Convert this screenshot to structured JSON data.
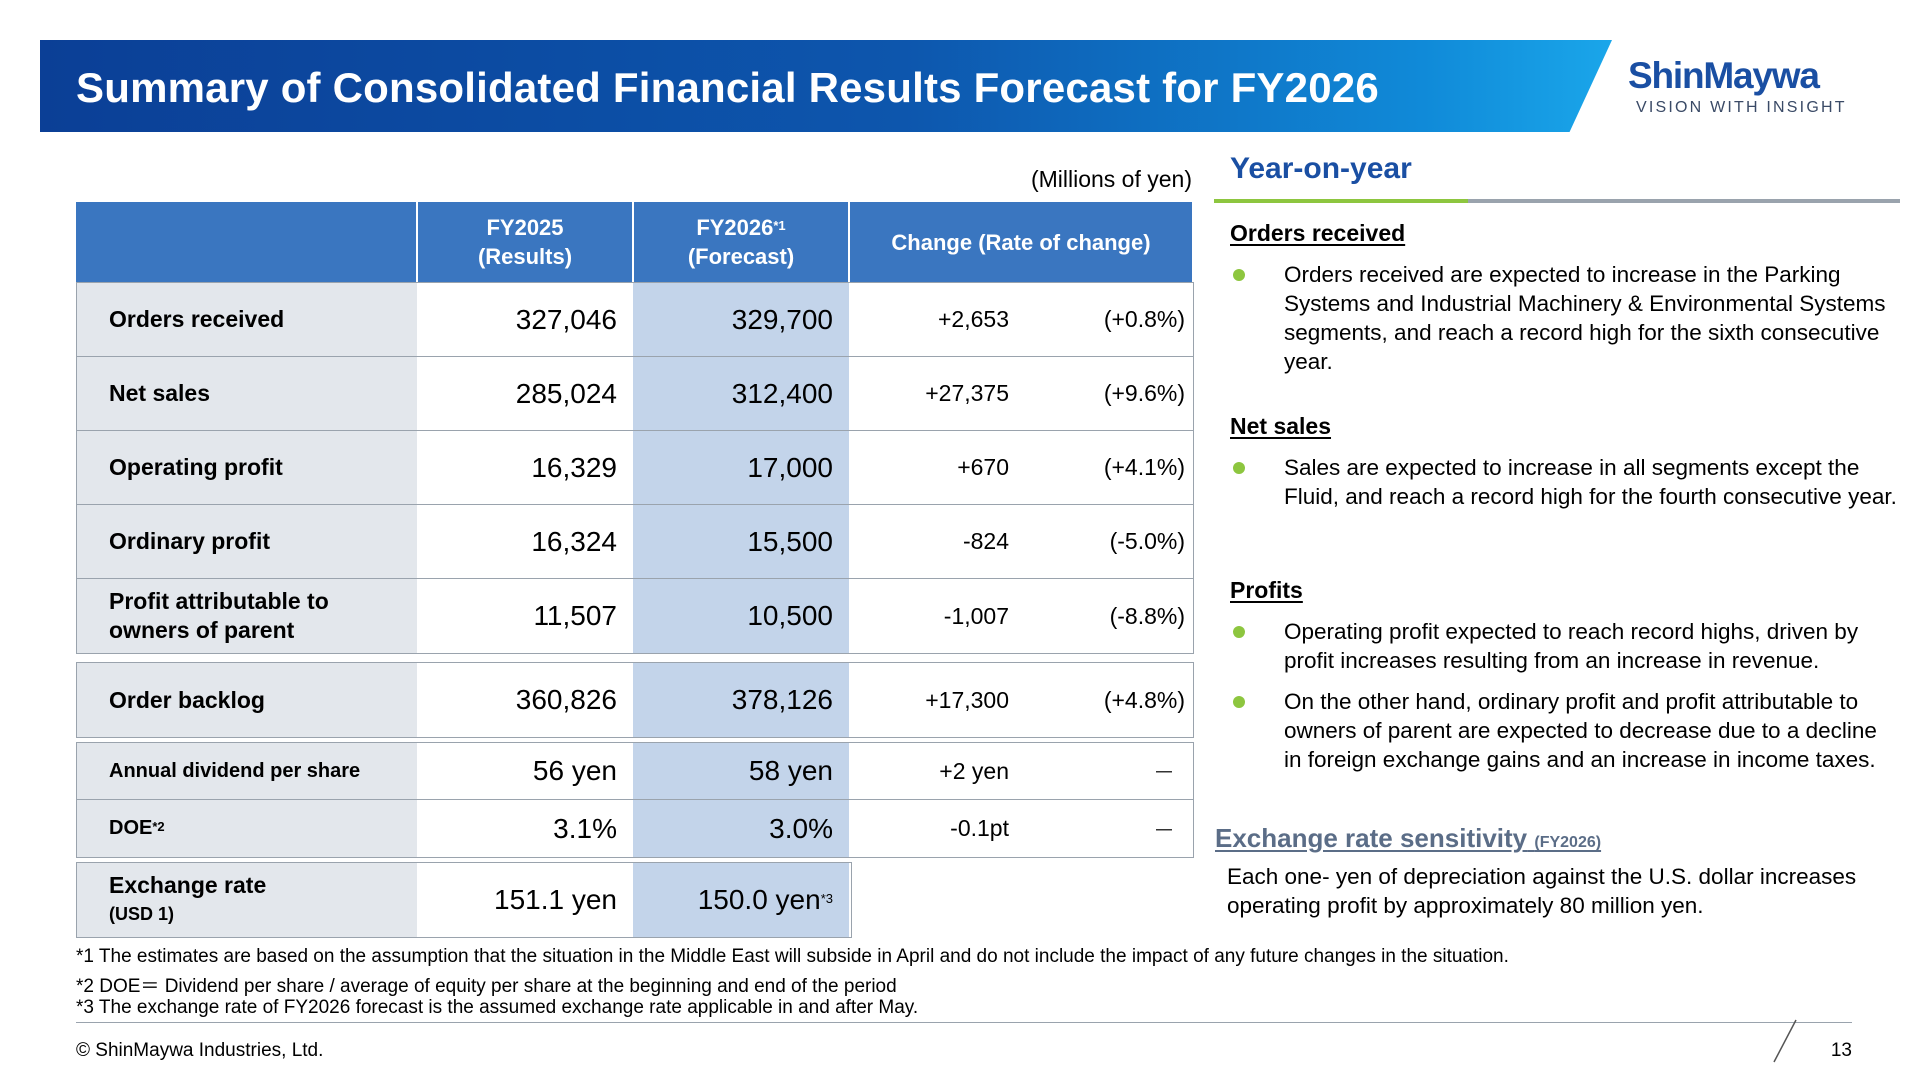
{
  "header": {
    "title": "Summary of Consolidated Financial Results Forecast for FY2026",
    "logo_name": "ShinMaywa",
    "logo_tagline": "VISION WITH INSIGHT",
    "banner_color": "#0d56ad"
  },
  "units": "(Millions of yen)",
  "table": {
    "headers": {
      "fy2025_line1": "FY2025",
      "fy2025_line2": "(Results)",
      "fy2026_line1": "FY2026",
      "fy2026_sup": "*1",
      "fy2026_line2": "(Forecast)",
      "change": "Change (Rate of change)"
    },
    "main_rows": [
      {
        "label": "Orders received",
        "fy2025": "327,046",
        "fy2026": "329,700",
        "change": "+2,653",
        "rate": "(+0.8%)"
      },
      {
        "label": "Net sales",
        "fy2025": "285,024",
        "fy2026": "312,400",
        "change": "+27,375",
        "rate": "(+9.6%)"
      },
      {
        "label": "Operating profit",
        "fy2025": "16,329",
        "fy2026": "17,000",
        "change": "+670",
        "rate": "(+4.1%)"
      },
      {
        "label": "Ordinary profit",
        "fy2025": "16,324",
        "fy2026": "15,500",
        "change": "-824",
        "rate": "(-5.0%)"
      },
      {
        "label_line1": "Profit attributable to",
        "label_line2": "owners of parent",
        "fy2025": "11,507",
        "fy2026": "10,500",
        "change": "-1,007",
        "rate": "(-8.8%)"
      }
    ],
    "backlog": {
      "label": "Order backlog",
      "fy2025": "360,826",
      "fy2026": "378,126",
      "change": "+17,300",
      "rate": "(+4.8%)"
    },
    "dividend": {
      "label": "Annual dividend per share",
      "fy2025": "56 yen",
      "fy2026": "58 yen",
      "change": "+2 yen",
      "rate": "－"
    },
    "doe": {
      "label": "DOE",
      "sup": "*2",
      "fy2025": "3.1%",
      "fy2026": "3.0%",
      "change": "-0.1pt",
      "rate": "－"
    },
    "exchange": {
      "label": "Exchange rate",
      "sub": "(USD 1)",
      "fy2025": "151.1 yen",
      "fy2026": "150.0 yen",
      "fy2026_sup": "*3"
    }
  },
  "footnotes": [
    "*1 The estimates are based on the assumption that the situation in the Middle East will subside in April and do not include the impact of any future changes in the situation.",
    "*2 DOE＝ Dividend per share / average of equity per share at the beginning and end of the period",
    "*3 The exchange rate of FY2026 forecast is the assumed exchange rate applicable in and after May."
  ],
  "right_panel": {
    "title": "Year-on-year",
    "orders_heading": "Orders received",
    "orders_bullet": "Orders received are expected to increase in the Parking Systems and Industrial Machinery & Environmental Systems segments, and reach a record high for the sixth consecutive year.",
    "sales_heading": "Net sales",
    "sales_bullet": "Sales are expected to increase in all segments except the Fluid, and reach a record high for the fourth consecutive year.",
    "profits_heading": "Profits",
    "profits_bullet_1": "Operating profit expected to reach record highs, driven by profit increases resulting from an increase in revenue.",
    "profits_bullet_2": "On the other hand, ordinary profit and profit attributable to owners of parent are expected to decrease due to a decline in foreign exchange gains and an increase in income taxes.",
    "exchange_heading": "Exchange rate sensitivity",
    "exchange_heading_suffix": "(FY2026)",
    "exchange_text": "Each one- yen of depreciation against the U.S. dollar increases operating profit by approximately 80 million yen.",
    "accent_color": "#8dc63f"
  },
  "footer": {
    "copyright": "© ShinMaywa Industries, Ltd.",
    "page_number": "13"
  }
}
